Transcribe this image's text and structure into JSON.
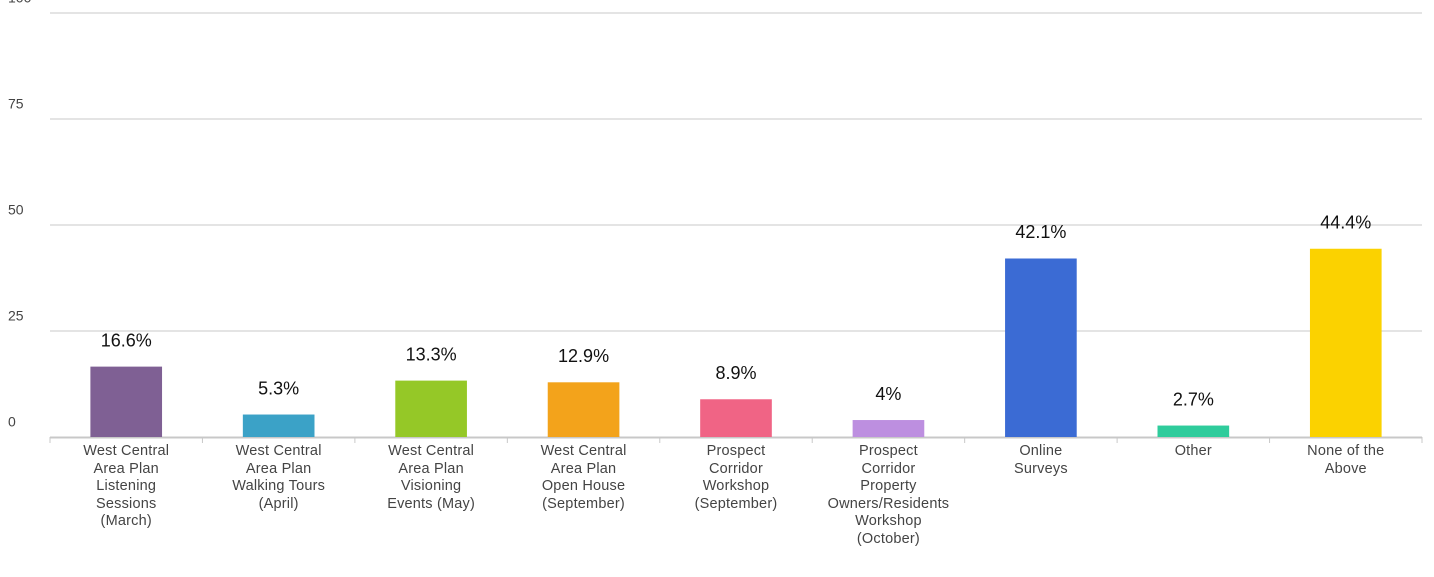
{
  "chart_data": {
    "type": "bar",
    "categories": [
      "West Central\nArea Plan\nListening\nSessions\n(March)",
      "West Central\nArea Plan\nWalking Tours\n(April)",
      "West Central\nArea Plan\nVisioning\nEvents (May)",
      "West Central\nArea Plan\nOpen House\n(September)",
      "Prospect\nCorridor\nWorkshop\n(September)",
      "Prospect\nCorridor\nProperty\nOwners/Residents\nWorkshop\n(October)",
      "Online\nSurveys",
      "Other",
      "None of the\nAbove"
    ],
    "values": [
      16.6,
      5.3,
      13.3,
      12.9,
      8.9,
      4,
      42.1,
      2.7,
      44.4
    ],
    "value_labels": [
      "16.6%",
      "5.3%",
      "13.3%",
      "12.9%",
      "8.9%",
      "4%",
      "42.1%",
      "2.7%",
      "44.4%"
    ],
    "colors": [
      "#7f6094",
      "#3ba2c7",
      "#95c827",
      "#f3a31b",
      "#f06485",
      "#bd8fe0",
      "#3b6bd4",
      "#2fcc9c",
      "#fbd200"
    ],
    "ylim": [
      0,
      100
    ],
    "yticks": [
      0,
      25,
      50,
      75,
      100
    ],
    "grid": true
  }
}
